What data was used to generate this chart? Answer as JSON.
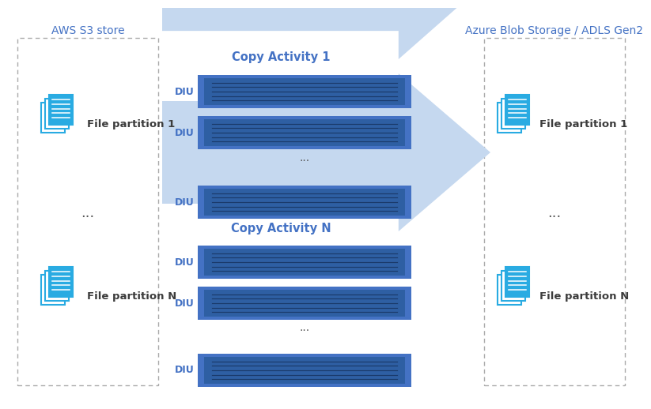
{
  "title_left": "AWS S3 store",
  "title_right": "Azure Blob Storage / ADLS Gen2",
  "copy_activity_1": "Copy Activity 1",
  "copy_activity_n": "Copy Activity N",
  "diu_label": "DIU",
  "dots": "...",
  "file_partition_1": "File partition 1",
  "file_partition_n": "File partition N",
  "bg_color": "#ffffff",
  "border_color": "#aaaaaa",
  "arrow_fill_color": "#c5d8ef",
  "diu_bg_color": "#4472c4",
  "diu_dark_color": "#2e5fa3",
  "diu_line_color": "#1a3a6a",
  "title_color": "#4472c4",
  "text_dark": "#3c3c3c",
  "icon_color": "#29abe2",
  "icon_border": "#1a8bbf",
  "icon_bg": "#ffffff",
  "dots_color": "#555555"
}
